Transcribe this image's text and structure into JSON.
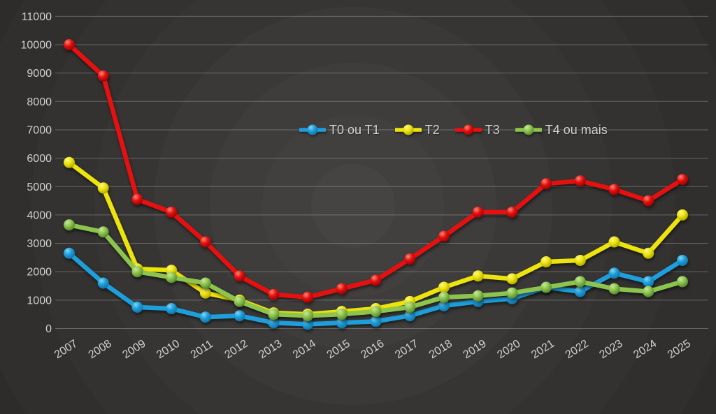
{
  "chart_data": {
    "type": "line",
    "title": "",
    "categories": [
      "2007",
      "2008",
      "2009",
      "2010",
      "2011",
      "2012",
      "2013",
      "2014",
      "2015",
      "2016",
      "2017",
      "2018",
      "2019",
      "2020",
      "2021",
      "2022",
      "2023",
      "2024",
      "2025"
    ],
    "series": [
      {
        "name": "T0 ou T1",
        "color": "#1E9EDB",
        "marker_highlight": "#84D7F2",
        "marker_dark": "#0E6E9F",
        "values": [
          2650,
          1600,
          750,
          700,
          400,
          450,
          200,
          150,
          200,
          250,
          450,
          800,
          950,
          1050,
          1450,
          1300,
          1950,
          1650,
          2400
        ]
      },
      {
        "name": "T2",
        "color": "#EDE40D",
        "marker_highlight": "#FBF78C",
        "marker_dark": "#A89F00",
        "values": [
          5850,
          4950,
          2100,
          2050,
          1250,
          1000,
          550,
          500,
          600,
          700,
          950,
          1450,
          1850,
          1750,
          2350,
          2400,
          3050,
          2650,
          4000
        ]
      },
      {
        "name": "T3",
        "color": "#E51010",
        "marker_highlight": "#FF8A75",
        "marker_dark": "#8F0000",
        "values": [
          10000,
          8900,
          4550,
          4100,
          3050,
          1850,
          1200,
          1100,
          1400,
          1700,
          2450,
          3250,
          4100,
          4100,
          5100,
          5200,
          4900,
          4500,
          5250
        ]
      },
      {
        "name": "T4 ou mais",
        "color": "#8CC44E",
        "marker_highlight": "#CBE79E",
        "marker_dark": "#4F7F25",
        "values": [
          3650,
          3400,
          2000,
          1800,
          1600,
          950,
          500,
          450,
          500,
          600,
          750,
          1100,
          1150,
          1250,
          1450,
          1650,
          1400,
          1300,
          1650
        ]
      }
    ],
    "xlabel": "",
    "ylabel": "",
    "ylim": [
      0,
      11000
    ],
    "ytick_step": 1000,
    "grid": true,
    "legend_position": "top-center-inside",
    "background_color": "#343332",
    "text_color": "#d2d2d2"
  }
}
